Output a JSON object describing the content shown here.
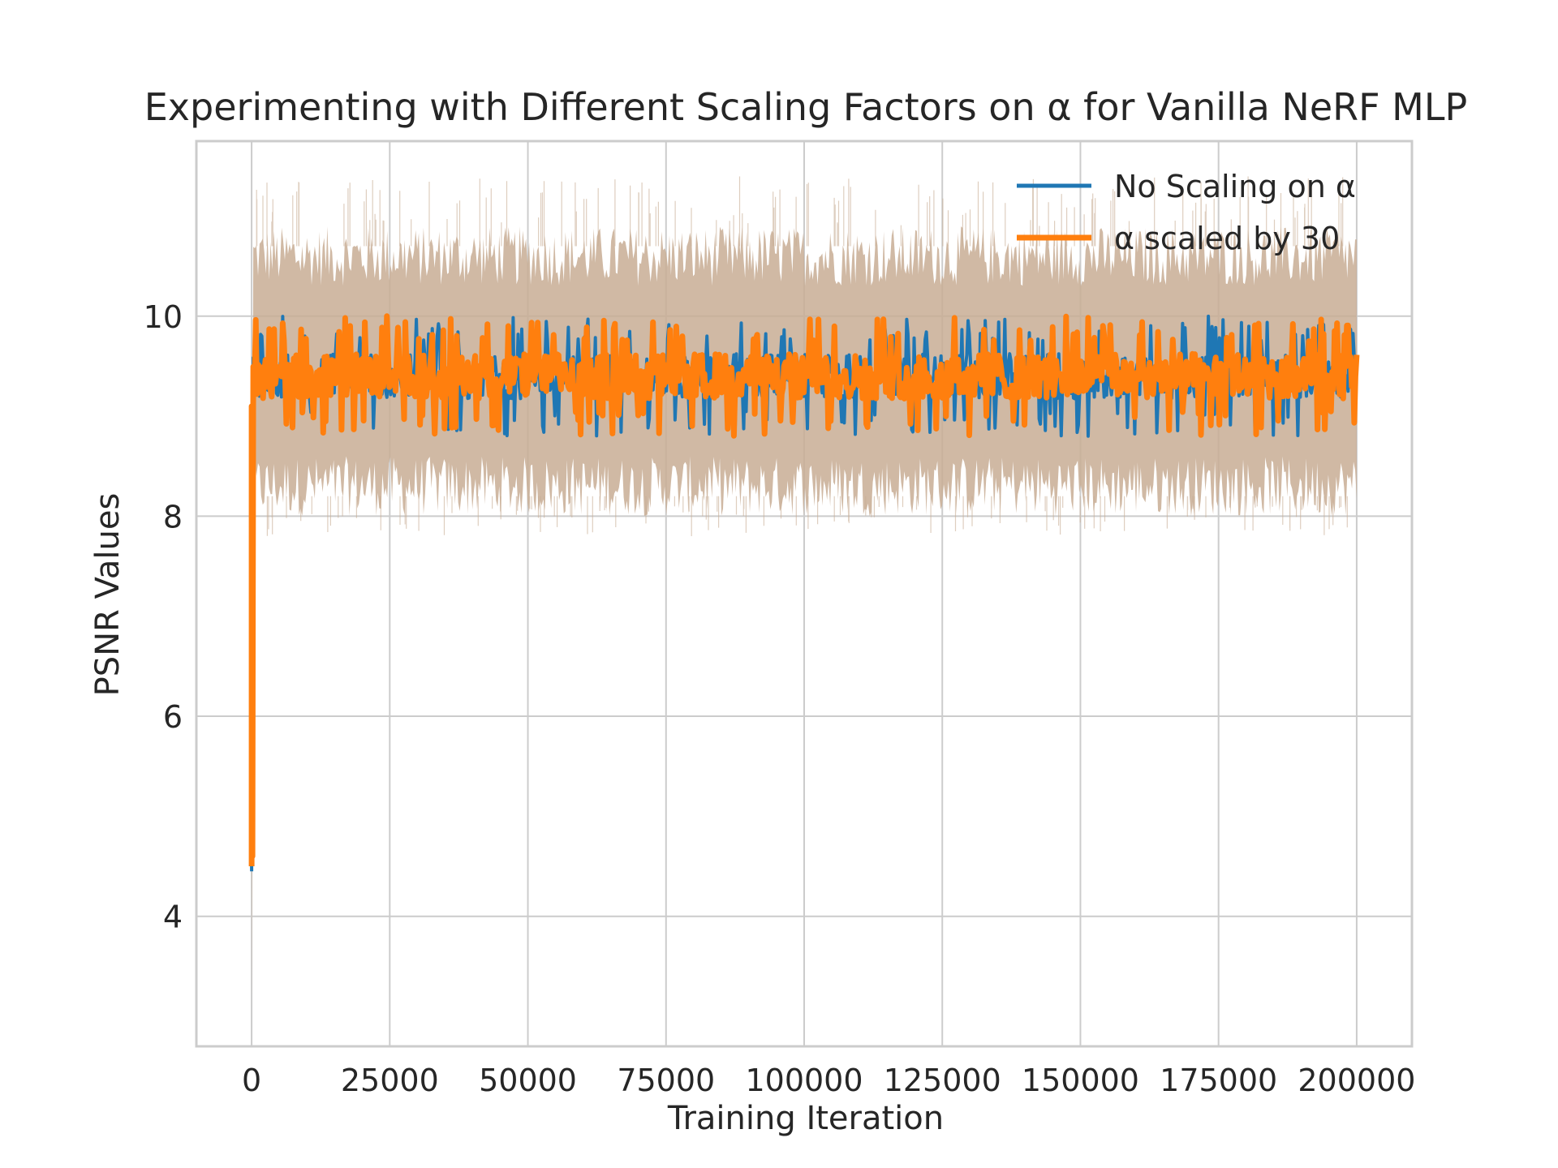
{
  "chart_data": {
    "type": "line",
    "title": "Experimenting with Different Scaling Factors on α for Vanilla NeRF MLP",
    "xlabel": "Training Iteration",
    "ylabel": "PSNR Values",
    "xlim": [
      -10000,
      210000
    ],
    "ylim": [
      2.7,
      11.75
    ],
    "xticks": [
      0,
      25000,
      50000,
      75000,
      100000,
      125000,
      150000,
      175000,
      200000
    ],
    "xtick_labels": [
      "0",
      "25000",
      "50000",
      "75000",
      "100000",
      "125000",
      "150000",
      "175000",
      "200000"
    ],
    "yticks": [
      4,
      6,
      8,
      10
    ],
    "ytick_labels": [
      "4",
      "6",
      "8",
      "10"
    ],
    "grid": true,
    "legend_position": "upper-right",
    "series": [
      {
        "name": "No Scaling on α",
        "color": "#1f77b4",
        "start": {
          "x": 0,
          "y": 4.45
        },
        "plateau": {
          "x_start": 300,
          "x_end": 200000,
          "mean": 9.4,
          "min": 8.8,
          "max": 10.0
        },
        "band": {
          "low": 8.3,
          "high": 10.6,
          "color": "#c8ad94"
        }
      },
      {
        "name": "α scaled by 30",
        "color": "#ff7f0e",
        "start": {
          "x": 0,
          "y": 4.5
        },
        "plateau": {
          "x_start": 300,
          "x_end": 200000,
          "mean": 9.4,
          "min": 8.8,
          "max": 10.0
        },
        "band": {
          "low": 8.3,
          "high": 10.6,
          "color": "#c8ad94"
        }
      }
    ]
  }
}
